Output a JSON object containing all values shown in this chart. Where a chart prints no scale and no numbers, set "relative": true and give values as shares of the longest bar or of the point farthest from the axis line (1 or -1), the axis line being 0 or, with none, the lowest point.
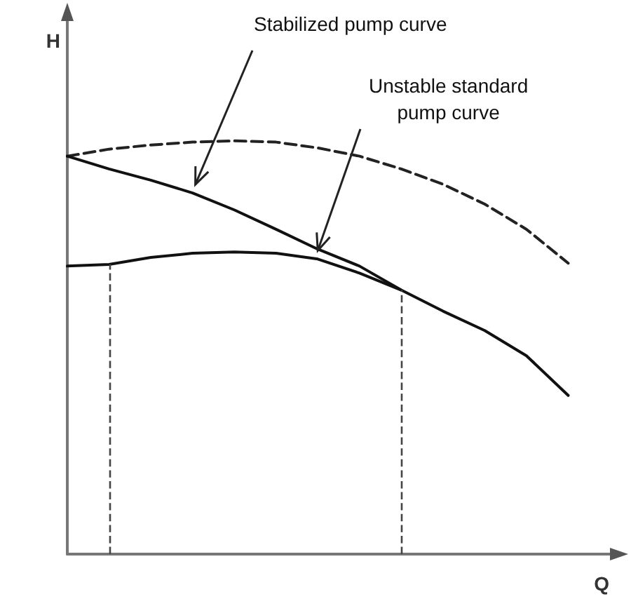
{
  "chart_data": {
    "type": "line",
    "relative": true,
    "xlabel": "Q",
    "ylabel": "H",
    "categories": [
      null,
      null,
      null,
      null,
      null,
      null,
      null,
      null,
      null,
      null,
      null,
      null,
      null,
      null
    ],
    "series": [
      {
        "color": "#222222",
        "line_style": "dashed",
        "values": [
          0.963,
          0.98,
          0.99,
          0.997,
          1.0,
          0.997,
          0.983,
          0.963,
          0.932,
          0.895,
          0.847,
          0.786,
          0.704,
          null
        ]
      },
      {
        "color": "#111111",
        "line_style": "solid",
        "values": [
          0.963,
          0.932,
          0.905,
          0.874,
          0.833,
          0.786,
          0.738,
          0.697,
          0.639,
          0.588,
          0.541,
          0.48,
          0.384,
          null
        ]
      },
      {
        "color": "#111111",
        "line_style": "solid",
        "values": [
          0.697,
          0.701,
          0.718,
          0.728,
          0.731,
          0.728,
          0.714,
          0.68,
          0.639,
          null,
          null,
          null,
          null,
          null
        ]
      }
    ],
    "annotations": [
      "Stabilized pump curve",
      "Unstable standard\npump curve"
    ],
    "marker": "none",
    "grid": false
  }
}
